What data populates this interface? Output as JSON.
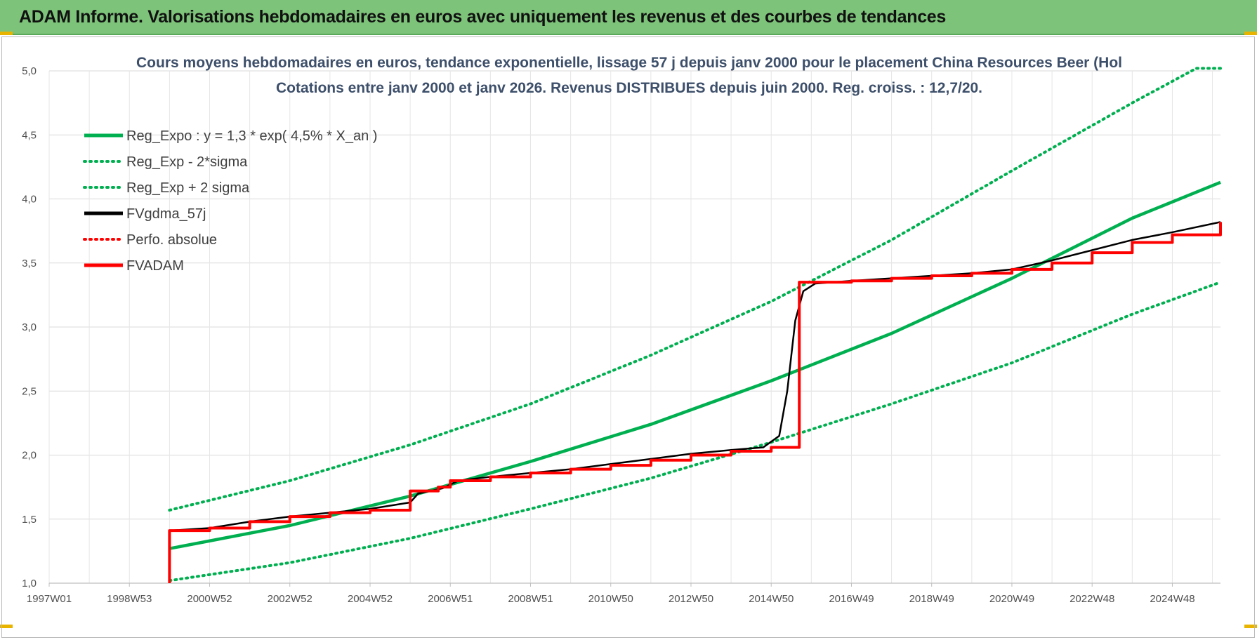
{
  "header": {
    "title": "ADAM Informe. Valorisations hebdomadaires en euros avec uniquement les revenus et des courbes de tendances"
  },
  "colors": {
    "header_bg": "#7dc47a",
    "green": "#00b050",
    "red": "#ff0000",
    "black": "#000000",
    "accent_yellow": "#e8b400"
  },
  "chart_data": {
    "type": "line",
    "title_line1": "Cours moyens hebdomadaires en euros, tendance exponentielle, lissage 57 j depuis janv 2000  pour le placement China Resources Beer (Hol",
    "title_line2": "Cotations entre janv 2000 et janv 2026. Revenus DISTRIBUES depuis juin 2000. Reg. croiss. : 12,7/20.",
    "x_tick_labels": [
      "1997W01",
      "1998W53",
      "2000W52",
      "2002W52",
      "2004W52",
      "2006W51",
      "2008W51",
      "2010W50",
      "2012W50",
      "2014W50",
      "2016W49",
      "2018W49",
      "2020W49",
      "2022W48",
      "2024W48"
    ],
    "y_tick_labels": [
      "1,0",
      "1,5",
      "2,0",
      "2,5",
      "3,0",
      "3,5",
      "4,0",
      "4,5",
      "5,0"
    ],
    "xlim": [
      1997.0,
      2026.2
    ],
    "ylim": [
      1.0,
      5.0
    ],
    "grid": true,
    "legend_position": "top-left",
    "series": [
      {
        "name": "Reg_Expo : y = 1,3 * exp( 4,5% *  X_an )",
        "color": "#00b050",
        "style": "solid",
        "points": [
          [
            2000.0,
            1.27
          ],
          [
            2003.0,
            1.45
          ],
          [
            2006.0,
            1.68
          ],
          [
            2009.0,
            1.95
          ],
          [
            2012.0,
            2.24
          ],
          [
            2015.0,
            2.58
          ],
          [
            2018.0,
            2.95
          ],
          [
            2021.0,
            3.38
          ],
          [
            2024.0,
            3.85
          ],
          [
            2026.2,
            4.13
          ]
        ]
      },
      {
        "name": "Reg_Exp - 2*sigma",
        "color": "#00b050",
        "style": "dotted",
        "points": [
          [
            2000.0,
            1.02
          ],
          [
            2003.0,
            1.16
          ],
          [
            2006.0,
            1.35
          ],
          [
            2009.0,
            1.58
          ],
          [
            2012.0,
            1.82
          ],
          [
            2015.0,
            2.1
          ],
          [
            2018.0,
            2.4
          ],
          [
            2021.0,
            2.72
          ],
          [
            2024.0,
            3.1
          ],
          [
            2026.2,
            3.35
          ]
        ]
      },
      {
        "name": "Reg_Exp + 2 sigma",
        "color": "#00b050",
        "style": "dotted",
        "points": [
          [
            2000.0,
            1.57
          ],
          [
            2003.0,
            1.8
          ],
          [
            2006.0,
            2.08
          ],
          [
            2009.0,
            2.4
          ],
          [
            2012.0,
            2.78
          ],
          [
            2015.0,
            3.2
          ],
          [
            2018.0,
            3.68
          ],
          [
            2021.0,
            4.22
          ],
          [
            2024.0,
            4.75
          ],
          [
            2025.6,
            5.02
          ],
          [
            2026.2,
            5.02
          ]
        ]
      },
      {
        "name": "FVgdma_57j",
        "color": "#000000",
        "style": "solid",
        "points": [
          [
            2000.0,
            1.41
          ],
          [
            2001.0,
            1.43
          ],
          [
            2002.0,
            1.48
          ],
          [
            2003.0,
            1.52
          ],
          [
            2004.0,
            1.55
          ],
          [
            2005.0,
            1.58
          ],
          [
            2006.0,
            1.63
          ],
          [
            2006.2,
            1.7
          ],
          [
            2006.8,
            1.74
          ],
          [
            2007.2,
            1.8
          ],
          [
            2008.0,
            1.83
          ],
          [
            2009.0,
            1.86
          ],
          [
            2010.0,
            1.89
          ],
          [
            2011.0,
            1.93
          ],
          [
            2012.0,
            1.97
          ],
          [
            2013.0,
            2.01
          ],
          [
            2014.0,
            2.04
          ],
          [
            2014.8,
            2.06
          ],
          [
            2015.2,
            2.15
          ],
          [
            2015.4,
            2.5
          ],
          [
            2015.6,
            3.05
          ],
          [
            2015.8,
            3.28
          ],
          [
            2016.1,
            3.34
          ],
          [
            2017.0,
            3.36
          ],
          [
            2018.0,
            3.38
          ],
          [
            2019.0,
            3.4
          ],
          [
            2020.0,
            3.42
          ],
          [
            2021.0,
            3.45
          ],
          [
            2022.0,
            3.52
          ],
          [
            2023.0,
            3.6
          ],
          [
            2024.0,
            3.68
          ],
          [
            2025.0,
            3.74
          ],
          [
            2026.2,
            3.82
          ]
        ]
      },
      {
        "name": "Perfo. absolue",
        "color": "#ff0000",
        "style": "dotted",
        "points": []
      },
      {
        "name": "FVADAM",
        "color": "#ff0000",
        "style": "solid",
        "stepped": true,
        "points": [
          [
            2000.0,
            1.0
          ],
          [
            2000.0,
            1.41
          ],
          [
            2001.0,
            1.43
          ],
          [
            2002.0,
            1.48
          ],
          [
            2003.0,
            1.52
          ],
          [
            2004.0,
            1.55
          ],
          [
            2005.0,
            1.57
          ],
          [
            2006.0,
            1.6
          ],
          [
            2006.0,
            1.72
          ],
          [
            2006.7,
            1.75
          ],
          [
            2007.0,
            1.8
          ],
          [
            2008.0,
            1.83
          ],
          [
            2009.0,
            1.86
          ],
          [
            2010.0,
            1.89
          ],
          [
            2011.0,
            1.92
          ],
          [
            2012.0,
            1.96
          ],
          [
            2013.0,
            2.0
          ],
          [
            2014.0,
            2.03
          ],
          [
            2015.0,
            2.06
          ],
          [
            2015.7,
            2.08
          ],
          [
            2015.7,
            3.35
          ],
          [
            2017.0,
            3.36
          ],
          [
            2018.0,
            3.38
          ],
          [
            2019.0,
            3.4
          ],
          [
            2020.0,
            3.42
          ],
          [
            2021.0,
            3.45
          ],
          [
            2022.0,
            3.5
          ],
          [
            2023.0,
            3.58
          ],
          [
            2024.0,
            3.66
          ],
          [
            2025.0,
            3.72
          ],
          [
            2026.2,
            3.82
          ]
        ]
      }
    ]
  }
}
